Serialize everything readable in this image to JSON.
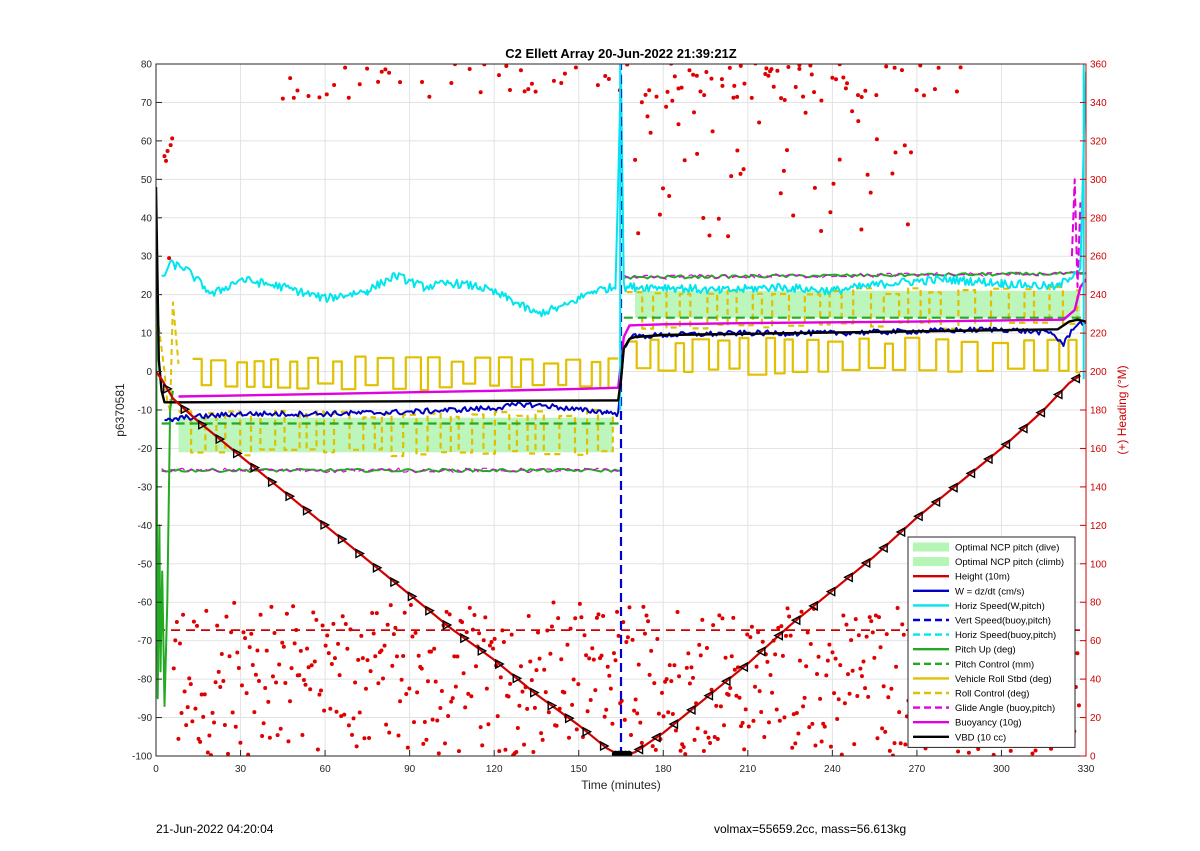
{
  "chart_data": {
    "type": "line",
    "title": "C2 Ellett Array 20-Jun-2022 21:39:21Z",
    "xlabel": "Time (minutes)",
    "ylabel": "p6370581",
    "y2label": "(+) Heading (°M)",
    "xlim": [
      0,
      330
    ],
    "ylim": [
      -100,
      80
    ],
    "y2lim": [
      0,
      360
    ],
    "xticks": [
      "0",
      "30",
      "60",
      "90",
      "120",
      "150",
      "180",
      "210",
      "240",
      "270",
      "300",
      "330"
    ],
    "yticks": [
      "80",
      "70",
      "60",
      "50",
      "40",
      "30",
      "20",
      "10",
      "0",
      "-10",
      "-20",
      "-30",
      "-40",
      "-50",
      "-60",
      "-70",
      "-80",
      "-90",
      "-100"
    ],
    "y2ticks": [
      "360",
      "340",
      "320",
      "300",
      "280",
      "260",
      "240",
      "220",
      "200",
      "180",
      "160",
      "140",
      "120",
      "100",
      "80",
      "60",
      "40",
      "20",
      "0"
    ],
    "grid": true,
    "legend_position": "bottom-right",
    "colors": {
      "height": "#d00000",
      "w": "#0000c0",
      "horiz": "#00e5ee",
      "vert": "#0000d0",
      "pitch": "#22aa22",
      "roll": "#e0c000",
      "glide": "#e000e0",
      "buoy": "#e000e0",
      "vbd": "#000000",
      "heading": "#e00000",
      "ncp": "#b5f5b5"
    },
    "legend": [
      {
        "label": "Optimal NCP pitch (dive)",
        "style": "patch",
        "color": "#b5f5b5"
      },
      {
        "label": "Optimal NCP pitch (climb)",
        "style": "patch",
        "color": "#b5f5b5"
      },
      {
        "label": "Height (10m)",
        "style": "solid",
        "color": "#d00000"
      },
      {
        "label": "W = dz/dt (cm/s)",
        "style": "solid",
        "color": "#0000c0"
      },
      {
        "label": "Horiz Speed(W,pitch)",
        "style": "solid",
        "color": "#00e5ee"
      },
      {
        "label": "Vert Speed(buoy,pitch)",
        "style": "dashed",
        "color": "#0000d0"
      },
      {
        "label": "Horiz Speed(buoy,pitch)",
        "style": "dashed",
        "color": "#00e5ee"
      },
      {
        "label": "Pitch Up (deg)",
        "style": "solid",
        "color": "#22aa22"
      },
      {
        "label": "Pitch Control (mm)",
        "style": "dashed",
        "color": "#22aa22"
      },
      {
        "label": "Vehicle Roll Stbd (deg)",
        "style": "solid",
        "color": "#e0c000"
      },
      {
        "label": "Roll Control (deg)",
        "style": "dashed",
        "color": "#e0c000"
      },
      {
        "label": "Glide Angle (buoy,pitch)",
        "style": "dashed",
        "color": "#e000e0"
      },
      {
        "label": "Buoyancy (10g)",
        "style": "solid",
        "color": "#e000e0"
      },
      {
        "label": "VBD (10 cc)",
        "style": "solid",
        "color": "#000000"
      }
    ],
    "series": [
      {
        "name": "Height (10m)",
        "key": "height",
        "x": [
          0,
          2,
          6,
          15,
          30,
          45,
          60,
          75,
          90,
          105,
          120,
          135,
          150,
          160,
          165,
          170,
          180,
          195,
          210,
          225,
          240,
          255,
          270,
          285,
          300,
          315,
          324,
          328
        ],
        "y": [
          0,
          -2,
          -7,
          -13,
          -22,
          -31,
          -40,
          -49,
          -58,
          -67,
          -75,
          -84,
          -92,
          -98,
          -100,
          -99,
          -94,
          -85,
          -76,
          -66,
          -57,
          -48,
          -38,
          -29,
          -20,
          -10,
          -3,
          -1
        ]
      },
      {
        "name": "VBD (10 cc)",
        "key": "vbd",
        "x": [
          0,
          1,
          2,
          3,
          4,
          10,
          160,
          164,
          165,
          166,
          168,
          170,
          180,
          320,
          322,
          324,
          327,
          330
        ],
        "y": [
          48,
          3,
          -5,
          -8,
          -8,
          -8,
          -7.5,
          -7.5,
          -2,
          6,
          8.5,
          9,
          9.5,
          11,
          12,
          13,
          13.5,
          13
        ]
      },
      {
        "name": "Buoyancy (10g)",
        "key": "buoy",
        "x": [
          8,
          30,
          60,
          90,
          120,
          150,
          164,
          166,
          168,
          180,
          210,
          240,
          270,
          300,
          322,
          326,
          328,
          330
        ],
        "y": [
          -6.5,
          -6.2,
          -5.8,
          -5.4,
          -5,
          -4.5,
          -4.2,
          9,
          12,
          12.3,
          12.6,
          12.8,
          13,
          13.3,
          13.5,
          16,
          22,
          24
        ]
      },
      {
        "name": "W = dz/dt (cm/s)",
        "key": "w",
        "x": [
          3,
          10,
          30,
          60,
          90,
          120,
          130,
          140,
          150,
          160,
          164,
          166,
          168,
          180,
          210,
          240,
          270,
          300,
          318,
          322,
          326,
          330
        ],
        "y": [
          -13,
          -12,
          -11,
          -11,
          -10.5,
          -9.5,
          -8.5,
          -9,
          -10,
          -10.5,
          -11,
          6,
          9,
          9.5,
          10,
          10,
          10.5,
          11,
          10,
          7,
          12,
          13
        ]
      },
      {
        "name": "Horiz Speed(W,pitch)",
        "key": "horiz",
        "x": [
          2,
          5,
          10,
          20,
          30,
          45,
          60,
          75,
          85,
          95,
          105,
          115,
          125,
          135,
          145,
          155,
          163,
          165,
          166,
          170,
          180,
          200,
          220,
          240,
          260,
          280,
          300,
          320,
          328,
          330
        ],
        "y": [
          24,
          28,
          27,
          20,
          24,
          22,
          19,
          21,
          25,
          22,
          23,
          22,
          19,
          15,
          17,
          21,
          22,
          78,
          22,
          22,
          22,
          21,
          22,
          21,
          23,
          24,
          23,
          22,
          27,
          78
        ]
      },
      {
        "name": "Pitch Up (deg) dive",
        "key": "pitch",
        "x": [
          2,
          165
        ],
        "y": [
          -25.7,
          -25.7
        ]
      },
      {
        "name": "Pitch Up (deg) climb",
        "key": "pitch",
        "x": [
          166,
          330
        ],
        "y": [
          24.5,
          25.5
        ]
      },
      {
        "name": "Pitch Control (mm) dive",
        "key": "pitch_ctrl",
        "x": [
          2,
          165
        ],
        "y": [
          -13.5,
          -13.5
        ]
      },
      {
        "name": "Pitch Control (mm) climb",
        "key": "pitch_ctrl",
        "x": [
          166,
          330
        ],
        "y": [
          14,
          14
        ]
      }
    ],
    "ncp_bands": [
      {
        "name": "Optimal NCP pitch (dive)",
        "x": [
          8,
          162
        ],
        "y": [
          -21,
          -12
        ]
      },
      {
        "name": "Optimal NCP pitch (climb)",
        "x": [
          170,
          328
        ],
        "y": [
          14,
          21
        ]
      }
    ],
    "vert_speed_spike_x": 165
  },
  "footer": {
    "left": "21-Jun-2022 04:20:04",
    "right": "volmax=55659.2cc, mass=56.613kg"
  }
}
